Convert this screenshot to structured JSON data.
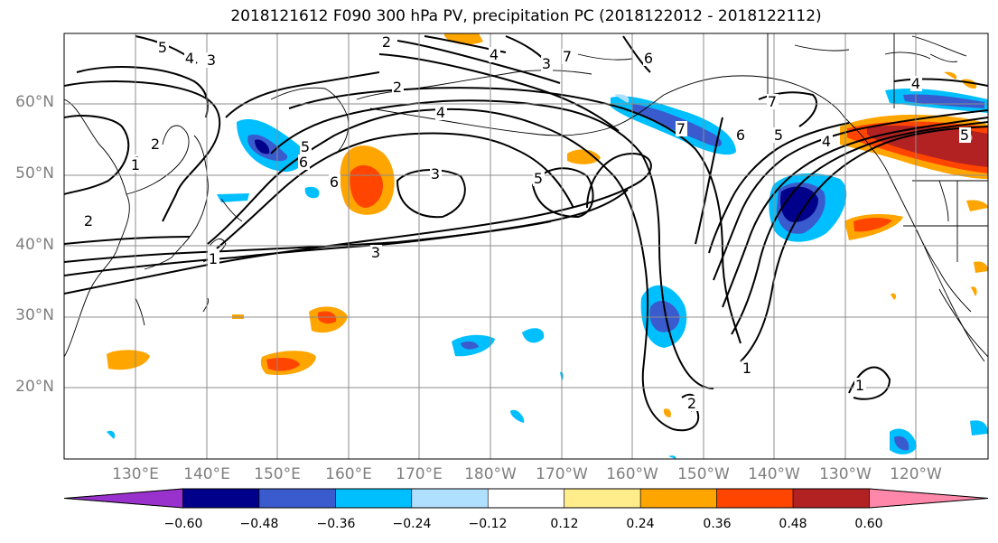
{
  "title": "2018121612 F090 300 hPa PV, precipitation PC (2018122012 - 2018122112)",
  "lat_labels": [
    "60°N",
    "50°N",
    "40°N",
    "30°N",
    "20°N"
  ],
  "lon_labels": [
    "130°E",
    "140°E",
    "150°E",
    "160°E",
    "170°E",
    "180°W",
    "170°W",
    "160°W",
    "150°W",
    "140°W",
    "130°W",
    "120°W"
  ],
  "colorbar": {
    "ticks": [
      "−0.60",
      "−0.48",
      "−0.36",
      "−0.24",
      "−0.12",
      "0.12",
      "0.24",
      "0.36",
      "0.48",
      "0.60"
    ],
    "colors": [
      "#9932cc",
      "#00008b",
      "#3a5bcd",
      "#00bfff",
      "#b0e0ff",
      "#ffffff",
      "#ffec8b",
      "#ffa500",
      "#ff4500",
      "#b22222",
      "#ff88aa"
    ]
  },
  "pv_contour_labels": [
    "5",
    "4",
    "3",
    "2",
    "1",
    "2",
    "1",
    "2",
    "4",
    "5",
    "6",
    "6",
    "3",
    "5",
    "4",
    "3",
    "7",
    "6",
    "7",
    "6",
    "5",
    "4",
    "1",
    "2",
    "1",
    "4",
    "5",
    "7",
    "2",
    "3",
    "1",
    "2",
    "1"
  ]
}
